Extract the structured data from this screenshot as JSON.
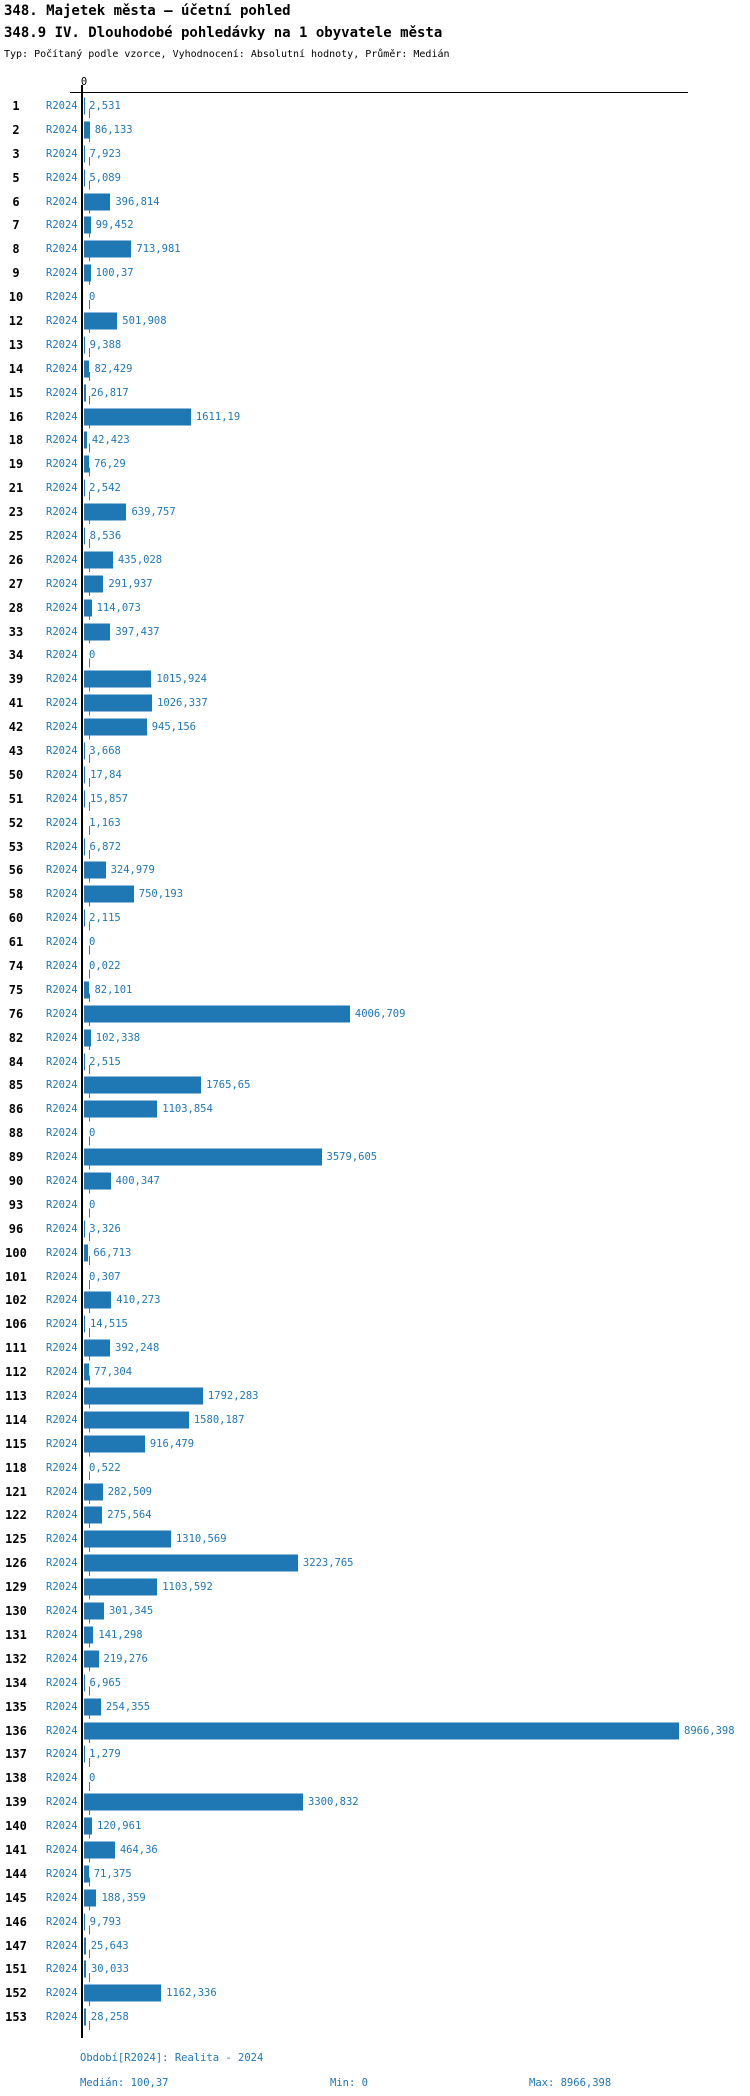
{
  "header": {
    "title": "348. Majetek města – účetní pohled",
    "subtitle": "348.9 IV. Dlouhodobé pohledávky na 1 obyvatele města",
    "meta": "Typ: Počítaný podle vzorce, Vyhodnocení: Absolutní hodnoty, Průměr: Medián"
  },
  "footer": {
    "period": "Období[R2024]: Realita - 2024",
    "median": "Medián: 100,37",
    "min": "Min: 0",
    "max": "Max: 8966,398"
  },
  "colors": {
    "bar": "#1f77b4",
    "label_blue": "#1f77b4",
    "axis": "#000000",
    "median_line": "#2b7fb8"
  },
  "chart_data": {
    "type": "bar",
    "orientation": "horizontal",
    "title": "348.9 IV. Dlouhodobé pohledávky na 1 obyvatele města",
    "series_label": "R2024",
    "zero_tick_label": "0",
    "xlim": [
      0,
      8966.398
    ],
    "median": 100.37,
    "min": 0,
    "max": 8966.398,
    "grid": false,
    "rows": [
      {
        "id": "1",
        "value": 2.531,
        "label": "2,531"
      },
      {
        "id": "2",
        "value": 86.133,
        "label": "86,133"
      },
      {
        "id": "3",
        "value": 7.923,
        "label": "7,923"
      },
      {
        "id": "5",
        "value": 5.089,
        "label": "5,089"
      },
      {
        "id": "6",
        "value": 396.814,
        "label": "396,814"
      },
      {
        "id": "7",
        "value": 99.452,
        "label": "99,452"
      },
      {
        "id": "8",
        "value": 713.981,
        "label": "713,981"
      },
      {
        "id": "9",
        "value": 100.37,
        "label": "100,37"
      },
      {
        "id": "10",
        "value": 0,
        "label": "0"
      },
      {
        "id": "12",
        "value": 501.908,
        "label": "501,908"
      },
      {
        "id": "13",
        "value": 9.388,
        "label": "9,388"
      },
      {
        "id": "14",
        "value": 82.429,
        "label": "82,429"
      },
      {
        "id": "15",
        "value": 26.817,
        "label": "26,817"
      },
      {
        "id": "16",
        "value": 1611.19,
        "label": "1611,19"
      },
      {
        "id": "18",
        "value": 42.423,
        "label": "42,423"
      },
      {
        "id": "19",
        "value": 76.29,
        "label": "76,29"
      },
      {
        "id": "21",
        "value": 2.542,
        "label": "2,542"
      },
      {
        "id": "23",
        "value": 639.757,
        "label": "639,757"
      },
      {
        "id": "25",
        "value": 8.536,
        "label": "8,536"
      },
      {
        "id": "26",
        "value": 435.028,
        "label": "435,028"
      },
      {
        "id": "27",
        "value": 291.937,
        "label": "291,937"
      },
      {
        "id": "28",
        "value": 114.073,
        "label": "114,073"
      },
      {
        "id": "33",
        "value": 397.437,
        "label": "397,437"
      },
      {
        "id": "34",
        "value": 0,
        "label": "0"
      },
      {
        "id": "39",
        "value": 1015.924,
        "label": "1015,924"
      },
      {
        "id": "41",
        "value": 1026.337,
        "label": "1026,337"
      },
      {
        "id": "42",
        "value": 945.156,
        "label": "945,156"
      },
      {
        "id": "43",
        "value": 3.668,
        "label": "3,668"
      },
      {
        "id": "50",
        "value": 17.84,
        "label": "17,84"
      },
      {
        "id": "51",
        "value": 15.857,
        "label": "15,857"
      },
      {
        "id": "52",
        "value": 1.163,
        "label": "1,163"
      },
      {
        "id": "53",
        "value": 6.872,
        "label": "6,872"
      },
      {
        "id": "56",
        "value": 324.979,
        "label": "324,979"
      },
      {
        "id": "58",
        "value": 750.193,
        "label": "750,193"
      },
      {
        "id": "60",
        "value": 2.115,
        "label": "2,115"
      },
      {
        "id": "61",
        "value": 0,
        "label": "0"
      },
      {
        "id": "74",
        "value": 0.022,
        "label": "0,022"
      },
      {
        "id": "75",
        "value": 82.101,
        "label": "82,101"
      },
      {
        "id": "76",
        "value": 4006.709,
        "label": "4006,709"
      },
      {
        "id": "82",
        "value": 102.338,
        "label": "102,338"
      },
      {
        "id": "84",
        "value": 2.515,
        "label": "2,515"
      },
      {
        "id": "85",
        "value": 1765.65,
        "label": "1765,65"
      },
      {
        "id": "86",
        "value": 1103.854,
        "label": "1103,854"
      },
      {
        "id": "88",
        "value": 0,
        "label": "0"
      },
      {
        "id": "89",
        "value": 3579.605,
        "label": "3579,605"
      },
      {
        "id": "90",
        "value": 400.347,
        "label": "400,347"
      },
      {
        "id": "93",
        "value": 0,
        "label": "0"
      },
      {
        "id": "96",
        "value": 3.326,
        "label": "3,326"
      },
      {
        "id": "100",
        "value": 66.713,
        "label": "66,713"
      },
      {
        "id": "101",
        "value": 0.307,
        "label": "0,307"
      },
      {
        "id": "102",
        "value": 410.273,
        "label": "410,273"
      },
      {
        "id": "106",
        "value": 14.515,
        "label": "14,515"
      },
      {
        "id": "111",
        "value": 392.248,
        "label": "392,248"
      },
      {
        "id": "112",
        "value": 77.304,
        "label": "77,304"
      },
      {
        "id": "113",
        "value": 1792.283,
        "label": "1792,283"
      },
      {
        "id": "114",
        "value": 1580.187,
        "label": "1580,187"
      },
      {
        "id": "115",
        "value": 916.479,
        "label": "916,479"
      },
      {
        "id": "118",
        "value": 0.522,
        "label": "0,522"
      },
      {
        "id": "121",
        "value": 282.509,
        "label": "282,509"
      },
      {
        "id": "122",
        "value": 275.564,
        "label": "275,564"
      },
      {
        "id": "125",
        "value": 1310.569,
        "label": "1310,569"
      },
      {
        "id": "126",
        "value": 3223.765,
        "label": "3223,765"
      },
      {
        "id": "129",
        "value": 1103.592,
        "label": "1103,592"
      },
      {
        "id": "130",
        "value": 301.345,
        "label": "301,345"
      },
      {
        "id": "131",
        "value": 141.298,
        "label": "141,298"
      },
      {
        "id": "132",
        "value": 219.276,
        "label": "219,276"
      },
      {
        "id": "134",
        "value": 6.965,
        "label": "6,965"
      },
      {
        "id": "135",
        "value": 254.355,
        "label": "254,355"
      },
      {
        "id": "136",
        "value": 8966.398,
        "label": "8966,398"
      },
      {
        "id": "137",
        "value": 1.279,
        "label": "1,279"
      },
      {
        "id": "138",
        "value": 0,
        "label": "0"
      },
      {
        "id": "139",
        "value": 3300.832,
        "label": "3300,832"
      },
      {
        "id": "140",
        "value": 120.961,
        "label": "120,961"
      },
      {
        "id": "141",
        "value": 464.36,
        "label": "464,36"
      },
      {
        "id": "144",
        "value": 71.375,
        "label": "71,375"
      },
      {
        "id": "145",
        "value": 188.359,
        "label": "188,359"
      },
      {
        "id": "146",
        "value": 9.793,
        "label": "9,793"
      },
      {
        "id": "147",
        "value": 25.643,
        "label": "25,643"
      },
      {
        "id": "151",
        "value": 30.033,
        "label": "30,033"
      },
      {
        "id": "152",
        "value": 1162.336,
        "label": "1162,336"
      },
      {
        "id": "153",
        "value": 28.258,
        "label": "28,258"
      }
    ]
  }
}
